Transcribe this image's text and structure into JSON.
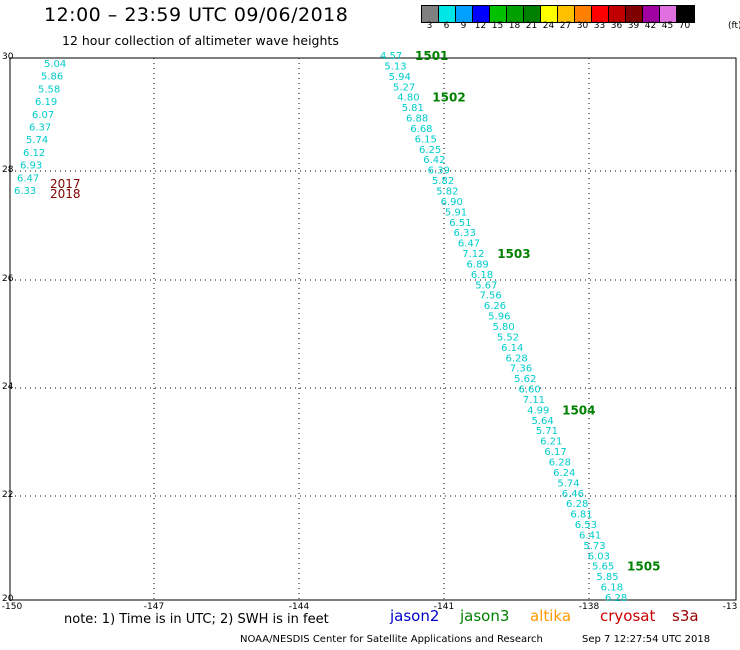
{
  "title": "12:00 – 23:59 UTC 09/06/2018",
  "subtitle": "12 hour collection of altimeter wave heights",
  "colorbar": {
    "unit": "(ft)",
    "bins": [
      {
        "label": "3",
        "color": "#808080"
      },
      {
        "label": "6",
        "color": "#00e5e5"
      },
      {
        "label": "9",
        "color": "#00a0ff"
      },
      {
        "label": "12",
        "color": "#0000ff"
      },
      {
        "label": "15",
        "color": "#00c000"
      },
      {
        "label": "18",
        "color": "#00a000"
      },
      {
        "label": "21",
        "color": "#008000"
      },
      {
        "label": "24",
        "color": "#ffff00"
      },
      {
        "label": "27",
        "color": "#ffc000"
      },
      {
        "label": "30",
        "color": "#ff8000"
      },
      {
        "label": "33",
        "color": "#ff0000"
      },
      {
        "label": "36",
        "color": "#c00000"
      },
      {
        "label": "39",
        "color": "#800000"
      },
      {
        "label": "42",
        "color": "#a000a0"
      },
      {
        "label": "45",
        "color": "#e070e0"
      },
      {
        "label": "70",
        "color": "#000000"
      }
    ]
  },
  "axes": {
    "lon_ticks": [
      "-150",
      "-147",
      "-144",
      "-141",
      "-138",
      "-13"
    ],
    "lat_ticks": [
      "30",
      "28",
      "26",
      "24",
      "22",
      "20"
    ]
  },
  "track_a": {
    "values": [
      "5.04",
      "5.86",
      "5.58",
      "6.19",
      "6.07",
      "6.37",
      "5.74",
      "6.12",
      "6.93",
      "6.47",
      "6.33"
    ],
    "labels": [
      "2017",
      "2018"
    ],
    "label_color": "#800000"
  },
  "track_b": {
    "values": [
      "4.57",
      "5.13",
      "5.94",
      "5.27",
      "4.80",
      "5.81",
      "6.88",
      "6.68",
      "6.15",
      "6.25",
      "6.42",
      "6.39",
      "5.82",
      "5.82",
      "6.90",
      "5.91",
      "6.51",
      "6.33",
      "6.47",
      "7.12",
      "6.89",
      "6.18",
      "5.67",
      "7.56",
      "6.26",
      "5.96",
      "5.80",
      "5.52",
      "6.14",
      "6.28",
      "7.36",
      "5.62",
      "6.60",
      "7.11",
      "4.99",
      "5.64",
      "5.71",
      "6.21",
      "6.17",
      "6.28",
      "6.24",
      "5.74",
      "6.46",
      "6.28",
      "6.81",
      "6.53",
      "6.41",
      "5.73",
      "6.03",
      "5.65",
      "5.85",
      "6.18",
      "6.28"
    ],
    "labels": [
      {
        "text": "1501",
        "at": 0
      },
      {
        "text": "1502",
        "at": 4
      },
      {
        "text": "1503",
        "at": 19
      },
      {
        "text": "1504",
        "at": 34
      },
      {
        "text": "1505",
        "at": 49
      }
    ],
    "label_color": "#008000"
  },
  "value_color": "#00cccc",
  "note": "note: 1) Time is in UTC; 2) SWH is in feet",
  "satellites": [
    {
      "name": "jason2",
      "color": "#0000cc"
    },
    {
      "name": "jason3",
      "color": "#008000"
    },
    {
      "name": "altika",
      "color": "#ff9900"
    },
    {
      "name": "cryosat",
      "color": "#cc0000"
    },
    {
      "name": "s3a",
      "color": "#990000"
    }
  ],
  "credit": "NOAA/NESDIS Center for Satellite Applications and Research",
  "credit_date": "Sep  7 12:27:54 UTC 2018"
}
